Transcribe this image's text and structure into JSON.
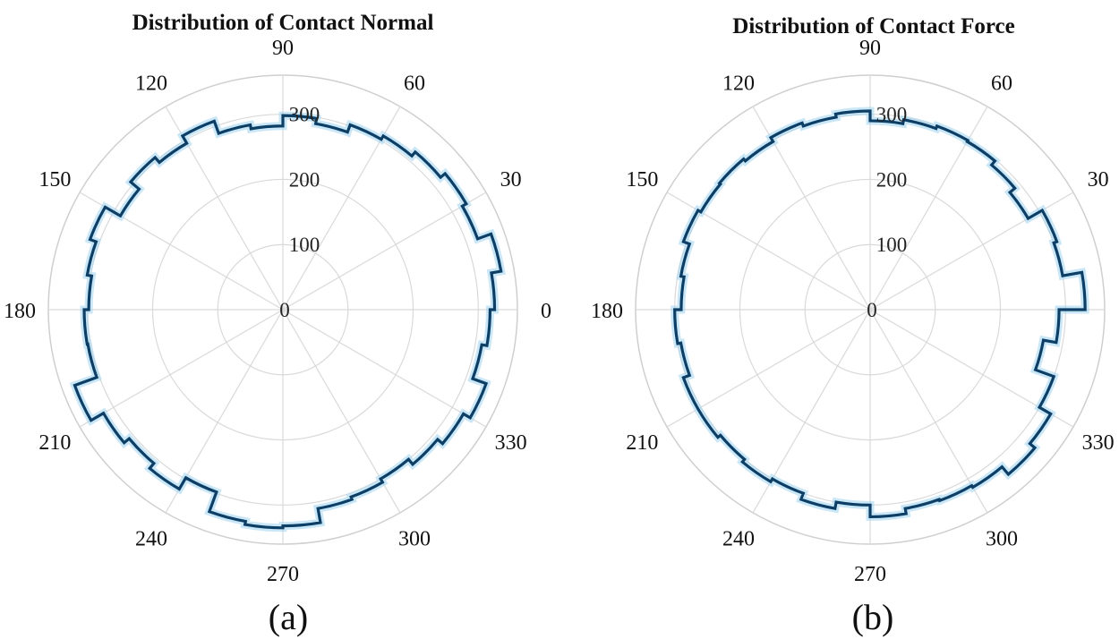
{
  "chart_data": [
    {
      "type": "polar-histogram",
      "panel": "(a)",
      "title": "Distribution of Contact Normal",
      "caption": "(a)",
      "theta_ticks": [
        0,
        30,
        60,
        90,
        120,
        150,
        180,
        210,
        240,
        270,
        300,
        330
      ],
      "r_ticks": [
        0,
        100,
        200,
        300
      ],
      "rlim": [
        0,
        360
      ],
      "bin_width_deg": 10,
      "bin_start_deg": [
        0,
        10,
        20,
        30,
        40,
        50,
        60,
        70,
        80,
        90,
        100,
        110,
        120,
        130,
        140,
        150,
        160,
        170,
        180,
        190,
        200,
        210,
        220,
        230,
        240,
        250,
        260,
        270,
        280,
        290,
        300,
        310,
        320,
        330,
        340,
        350
      ],
      "values": [
        325,
        340,
        318,
        325,
        316,
        308,
        302,
        290,
        298,
        282,
        288,
        308,
        295,
        305,
        288,
        315,
        305,
        298,
        305,
        304,
        340,
        318,
        308,
        318,
        298,
        330,
        335,
        332,
        310,
        306,
        300,
        310,
        320,
        332,
        310,
        318
      ],
      "color": "#0d3f66",
      "glow_color": "#9fd3f0"
    },
    {
      "type": "polar-histogram",
      "panel": "(b)",
      "title": "Distribution of Contact Force",
      "caption": "(b)",
      "theta_ticks": [
        0,
        30,
        60,
        90,
        120,
        150,
        180,
        210,
        240,
        270,
        300,
        330
      ],
      "r_ticks": [
        0,
        100,
        200,
        300
      ],
      "rlim": [
        0,
        360
      ],
      "bin_width_deg": 10,
      "bin_start_deg": [
        0,
        10,
        20,
        30,
        40,
        50,
        60,
        70,
        80,
        90,
        100,
        110,
        120,
        130,
        140,
        150,
        160,
        170,
        180,
        190,
        200,
        210,
        220,
        230,
        240,
        250,
        260,
        270,
        280,
        290,
        300,
        310,
        320,
        330,
        340,
        350
      ],
      "values": [
        330,
        300,
        305,
        280,
        290,
        298,
        300,
        296,
        290,
        305,
        300,
        305,
        298,
        302,
        300,
        305,
        295,
        290,
        300,
        295,
        305,
        305,
        300,
        305,
        300,
        310,
        300,
        318,
        310,
        312,
        315,
        330,
        320,
        300,
        270,
        290
      ],
      "color": "#0d3f66",
      "glow_color": "#9fd3f0"
    }
  ]
}
